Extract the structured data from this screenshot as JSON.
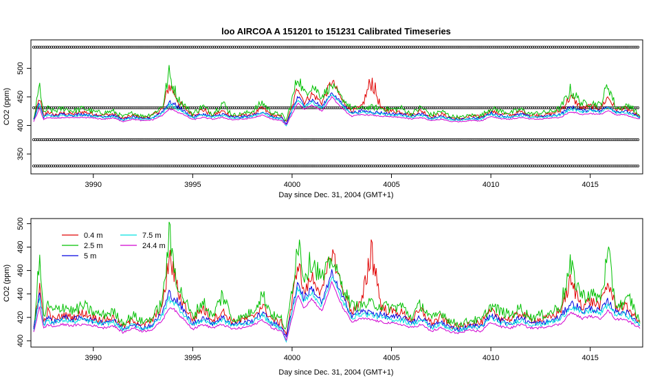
{
  "chart_data": [
    {
      "type": "line",
      "title": "loo   AIRCOA  A    151201  to  151231   Calibrated Timeseries",
      "xlabel": "Day since Dec. 31, 2004 (GMT+1)",
      "ylabel": "CO2 (ppm)",
      "xlim": [
        3987.0,
        4017.5
      ],
      "ylim": [
        320,
        545
      ],
      "xticks": [
        3990,
        3995,
        4000,
        4005,
        4010,
        4015
      ],
      "yticks": [
        350,
        400,
        450,
        500
      ],
      "grid": false,
      "reference_levels": [
        537,
        431,
        375,
        329
      ],
      "colors": {
        "0.4 m": "#e00000",
        "2.5 m": "#00c000",
        "5 m": "#0000e0",
        "7.5 m": "#00e0e0",
        "24.4 m": "#d000d0",
        "reference": "#000000"
      }
    },
    {
      "type": "line",
      "xlabel": "Day since Dec. 31, 2004 (GMT+1)",
      "ylabel": "CO2 (ppm)",
      "xlim": [
        3987.0,
        4017.5
      ],
      "ylim": [
        397,
        502
      ],
      "xticks": [
        3990,
        3995,
        4000,
        4005,
        4010,
        4015
      ],
      "yticks": [
        400,
        420,
        440,
        460,
        480,
        500
      ],
      "grid": false,
      "legend_placement": "top-left",
      "x": [
        3987.0,
        3987.3,
        3987.5,
        3987.7,
        3988.0,
        3988.5,
        3989.0,
        3989.5,
        3990.0,
        3990.5,
        3991.0,
        3991.5,
        3992.0,
        3992.5,
        3993.0,
        3993.5,
        3993.8,
        3994.0,
        3994.3,
        3994.6,
        3995.0,
        3995.5,
        3996.0,
        3996.5,
        3997.0,
        3997.5,
        3998.0,
        3998.5,
        3999.0,
        3999.5,
        3999.7,
        4000.0,
        4000.3,
        4000.6,
        4001.0,
        4001.5,
        4002.0,
        4002.5,
        4003.0,
        4003.5,
        4004.0,
        4004.5,
        4005.0,
        4005.5,
        4006.0,
        4006.5,
        4007.0,
        4007.5,
        4008.0,
        4008.5,
        4009.0,
        4009.5,
        4010.0,
        4010.5,
        4011.0,
        4011.5,
        4012.0,
        4012.5,
        4013.0,
        4013.5,
        4014.0,
        4014.3,
        4014.6,
        4015.0,
        4015.5,
        4015.9,
        4016.3,
        4016.7,
        4017.0,
        4017.5
      ],
      "series": [
        {
          "name": "0.4 m",
          "color": "#e00000",
          "values": [
            410,
            448,
            415,
            425,
            418,
            422,
            420,
            424,
            420,
            418,
            420,
            412,
            418,
            413,
            418,
            430,
            470,
            462,
            440,
            430,
            418,
            428,
            418,
            425,
            416,
            418,
            420,
            430,
            418,
            415,
            405,
            432,
            470,
            440,
            455,
            440,
            478,
            445,
            425,
            432,
            480,
            428,
            425,
            424,
            418,
            426,
            415,
            420,
            413,
            412,
            416,
            415,
            425,
            420,
            418,
            424,
            418,
            418,
            420,
            426,
            450,
            440,
            430,
            434,
            430,
            450,
            428,
            430,
            426,
            415
          ]
        },
        {
          "name": "2.5 m",
          "color": "#00c000",
          "values": [
            410,
            470,
            420,
            430,
            425,
            430,
            425,
            430,
            424,
            422,
            425,
            415,
            422,
            416,
            420,
            435,
            490,
            470,
            445,
            435,
            420,
            434,
            420,
            440,
            418,
            420,
            425,
            440,
            422,
            418,
            408,
            445,
            488,
            455,
            470,
            452,
            470,
            448,
            430,
            430,
            432,
            430,
            428,
            430,
            420,
            432,
            418,
            425,
            416,
            414,
            418,
            417,
            430,
            425,
            422,
            428,
            420,
            422,
            424,
            430,
            462,
            450,
            438,
            440,
            436,
            472,
            430,
            432,
            436,
            416
          ]
        },
        {
          "name": "5 m",
          "color": "#0000e0",
          "values": [
            410,
            440,
            414,
            420,
            416,
            420,
            418,
            420,
            417,
            416,
            418,
            410,
            415,
            411,
            414,
            425,
            440,
            438,
            432,
            424,
            414,
            420,
            415,
            420,
            414,
            415,
            417,
            424,
            415,
            412,
            402,
            428,
            450,
            436,
            445,
            432,
            458,
            438,
            422,
            425,
            424,
            422,
            420,
            420,
            416,
            420,
            412,
            416,
            411,
            410,
            413,
            412,
            422,
            417,
            415,
            420,
            415,
            415,
            417,
            420,
            432,
            430,
            425,
            428,
            425,
            434,
            424,
            425,
            422,
            414
          ]
        },
        {
          "name": "7.5 m",
          "color": "#00e0e0",
          "values": [
            409,
            438,
            413,
            418,
            415,
            418,
            416,
            418,
            416,
            414,
            416,
            409,
            414,
            410,
            413,
            422,
            436,
            434,
            428,
            422,
            413,
            418,
            414,
            418,
            413,
            414,
            416,
            422,
            414,
            410,
            398,
            425,
            446,
            433,
            441,
            430,
            455,
            435,
            420,
            423,
            422,
            420,
            418,
            418,
            414,
            418,
            411,
            414,
            410,
            409,
            412,
            411,
            420,
            415,
            414,
            418,
            414,
            414,
            416,
            418,
            429,
            427,
            423,
            426,
            423,
            431,
            422,
            423,
            420,
            413
          ]
        },
        {
          "name": "24.4 m",
          "color": "#d000d0",
          "values": [
            407,
            430,
            410,
            414,
            412,
            414,
            413,
            414,
            413,
            411,
            413,
            407,
            411,
            408,
            410,
            418,
            428,
            428,
            422,
            418,
            410,
            414,
            411,
            414,
            410,
            411,
            413,
            418,
            411,
            408,
            400,
            420,
            440,
            428,
            436,
            425,
            450,
            430,
            416,
            419,
            418,
            416,
            415,
            414,
            411,
            414,
            408,
            411,
            407,
            407,
            409,
            408,
            416,
            412,
            411,
            414,
            411,
            411,
            413,
            414,
            424,
            422,
            419,
            421,
            419,
            426,
            418,
            419,
            416,
            411
          ]
        }
      ],
      "legend": [
        "0.4 m",
        "2.5 m",
        "5 m",
        "7.5 m",
        "24.4 m"
      ]
    }
  ]
}
